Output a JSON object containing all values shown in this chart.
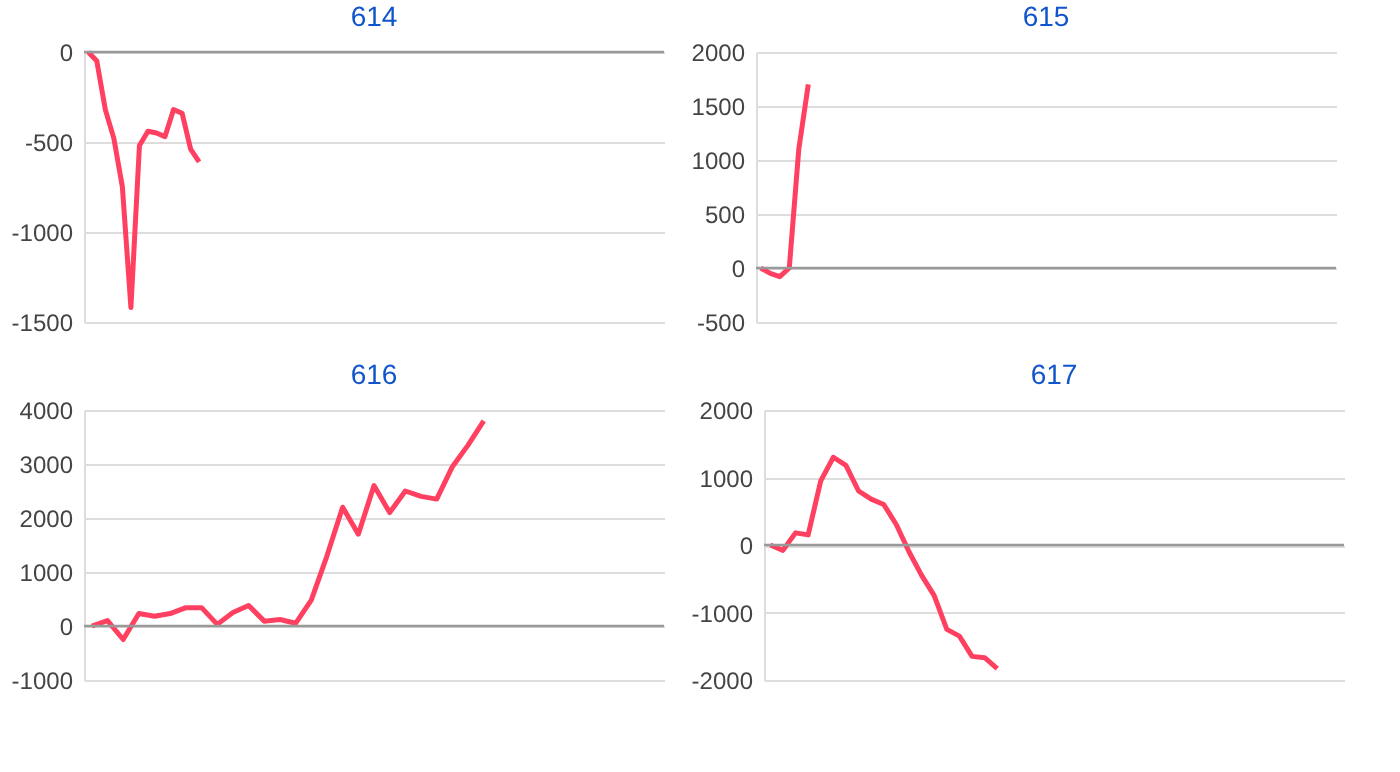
{
  "chart_data": [
    {
      "type": "line",
      "title": "614",
      "categories": [
        null,
        null,
        null,
        null,
        null,
        null,
        null,
        null,
        null,
        null,
        null,
        null,
        null,
        null,
        null,
        null,
        null,
        null,
        null,
        null,
        null,
        null,
        null,
        null,
        null,
        null,
        null,
        null,
        null,
        null,
        null,
        null,
        null,
        null,
        null,
        null,
        null,
        null,
        null,
        null,
        null,
        null,
        null,
        null,
        null,
        null,
        null,
        null,
        null,
        null,
        null,
        null,
        null,
        null,
        null,
        null,
        null,
        null,
        null,
        null,
        null,
        null,
        null,
        null,
        null,
        null,
        null,
        null
      ],
      "series": [
        {
          "color": "#ff4060",
          "values": [
            0,
            -50,
            -320,
            -480,
            -750,
            -1420,
            -520,
            -440,
            -450,
            -470,
            -320,
            -340,
            -540,
            -610,
            null,
            null,
            null,
            null,
            null,
            null,
            null,
            null,
            null,
            null,
            null,
            null,
            null,
            null,
            null,
            null,
            null,
            null,
            null,
            null,
            null,
            null,
            null,
            null,
            null,
            null,
            null,
            null,
            null,
            null,
            null,
            null,
            null,
            null,
            null,
            null,
            null,
            null,
            null,
            null,
            null,
            null,
            null,
            null,
            null,
            null,
            null,
            null,
            null,
            null,
            null,
            null,
            null,
            null
          ]
        }
      ],
      "ylim": [
        -1500,
        0
      ],
      "yticks": [
        -1500,
        -1000,
        -500,
        0
      ],
      "grid": "y",
      "tick_labels": "y",
      "ref_lines": [
        {
          "axis": "y",
          "value": 0,
          "color": "#999999"
        }
      ]
    },
    {
      "type": "line",
      "title": "615",
      "categories": [
        null,
        null,
        null,
        null,
        null,
        null,
        null,
        null,
        null,
        null,
        null,
        null,
        null,
        null,
        null,
        null,
        null,
        null,
        null,
        null,
        null,
        null,
        null,
        null,
        null,
        null,
        null,
        null,
        null,
        null,
        null,
        null,
        null,
        null,
        null,
        null,
        null,
        null,
        null,
        null,
        null,
        null,
        null,
        null,
        null,
        null,
        null,
        null,
        null,
        null,
        null,
        null,
        null,
        null,
        null,
        null,
        null,
        null,
        null,
        null,
        null
      ],
      "series": [
        {
          "color": "#ff4060",
          "values": [
            0,
            -50,
            -80,
            0,
            1100,
            1700,
            null,
            null,
            null,
            null,
            null,
            null,
            null,
            null,
            null,
            null,
            null,
            null,
            null,
            null,
            null,
            null,
            null,
            null,
            null,
            null,
            null,
            null,
            null,
            null,
            null,
            null,
            null,
            null,
            null,
            null,
            null,
            null,
            null,
            null,
            null,
            null,
            null,
            null,
            null,
            null,
            null,
            null,
            null,
            null,
            null,
            null,
            null,
            null,
            null,
            null,
            null,
            null,
            null,
            null,
            null
          ]
        }
      ],
      "ylim": [
        -500,
        2000
      ],
      "yticks": [
        -500,
        0,
        500,
        1000,
        1500,
        2000
      ],
      "grid": "y",
      "tick_labels": "y",
      "ref_lines": [
        {
          "axis": "y",
          "value": 0,
          "color": "#999999"
        }
      ]
    },
    {
      "type": "line",
      "title": "616",
      "categories": [
        null,
        null,
        null,
        null,
        null,
        null,
        null,
        null,
        null,
        null,
        null,
        null,
        null,
        null,
        null,
        null,
        null,
        null,
        null,
        null,
        null,
        null,
        null,
        null,
        null,
        null,
        null,
        null,
        null,
        null,
        null,
        null,
        null,
        null,
        null,
        null,
        null
      ],
      "series": [
        {
          "color": "#ff4060",
          "values": [
            0,
            100,
            -250,
            230,
            180,
            230,
            340,
            340,
            30,
            250,
            380,
            90,
            120,
            50,
            480,
            1300,
            2200,
            1700,
            2600,
            2100,
            2500,
            2400,
            2350,
            2950,
            3350,
            3800,
            null,
            null,
            null,
            null,
            null,
            null,
            null,
            null,
            null,
            null,
            null
          ]
        }
      ],
      "ylim": [
        -1000,
        4000
      ],
      "yticks": [
        -1000,
        0,
        1000,
        2000,
        3000,
        4000
      ],
      "grid": "y",
      "tick_labels": "y",
      "ref_lines": [
        {
          "axis": "y",
          "value": 0,
          "color": "#999999"
        }
      ]
    },
    {
      "type": "line",
      "title": "617",
      "categories": [
        null,
        null,
        null,
        null,
        null,
        null,
        null,
        null,
        null,
        null,
        null,
        null,
        null,
        null,
        null,
        null,
        null,
        null,
        null,
        null,
        null,
        null,
        null,
        null,
        null,
        null,
        null,
        null,
        null,
        null,
        null,
        null,
        null,
        null,
        null,
        null,
        null,
        null,
        null,
        null,
        null,
        null,
        null,
        null,
        null,
        null
      ],
      "series": [
        {
          "color": "#ff4060",
          "values": [
            0,
            -80,
            180,
            150,
            950,
            1300,
            1180,
            800,
            680,
            600,
            300,
            -100,
            -450,
            -750,
            -1250,
            -1350,
            -1650,
            -1670,
            -1830,
            null,
            null,
            null,
            null,
            null,
            null,
            null,
            null,
            null,
            null,
            null,
            null,
            null,
            null,
            null,
            null,
            null,
            null,
            null,
            null,
            null,
            null,
            null,
            null,
            null,
            null,
            null
          ]
        }
      ],
      "ylim": [
        -2000,
        2000
      ],
      "yticks": [
        -2000,
        -1000,
        0,
        1000,
        2000
      ],
      "grid": "y",
      "tick_labels": "y",
      "ref_lines": [
        {
          "axis": "y",
          "value": 0,
          "color": "#999999"
        }
      ]
    }
  ]
}
